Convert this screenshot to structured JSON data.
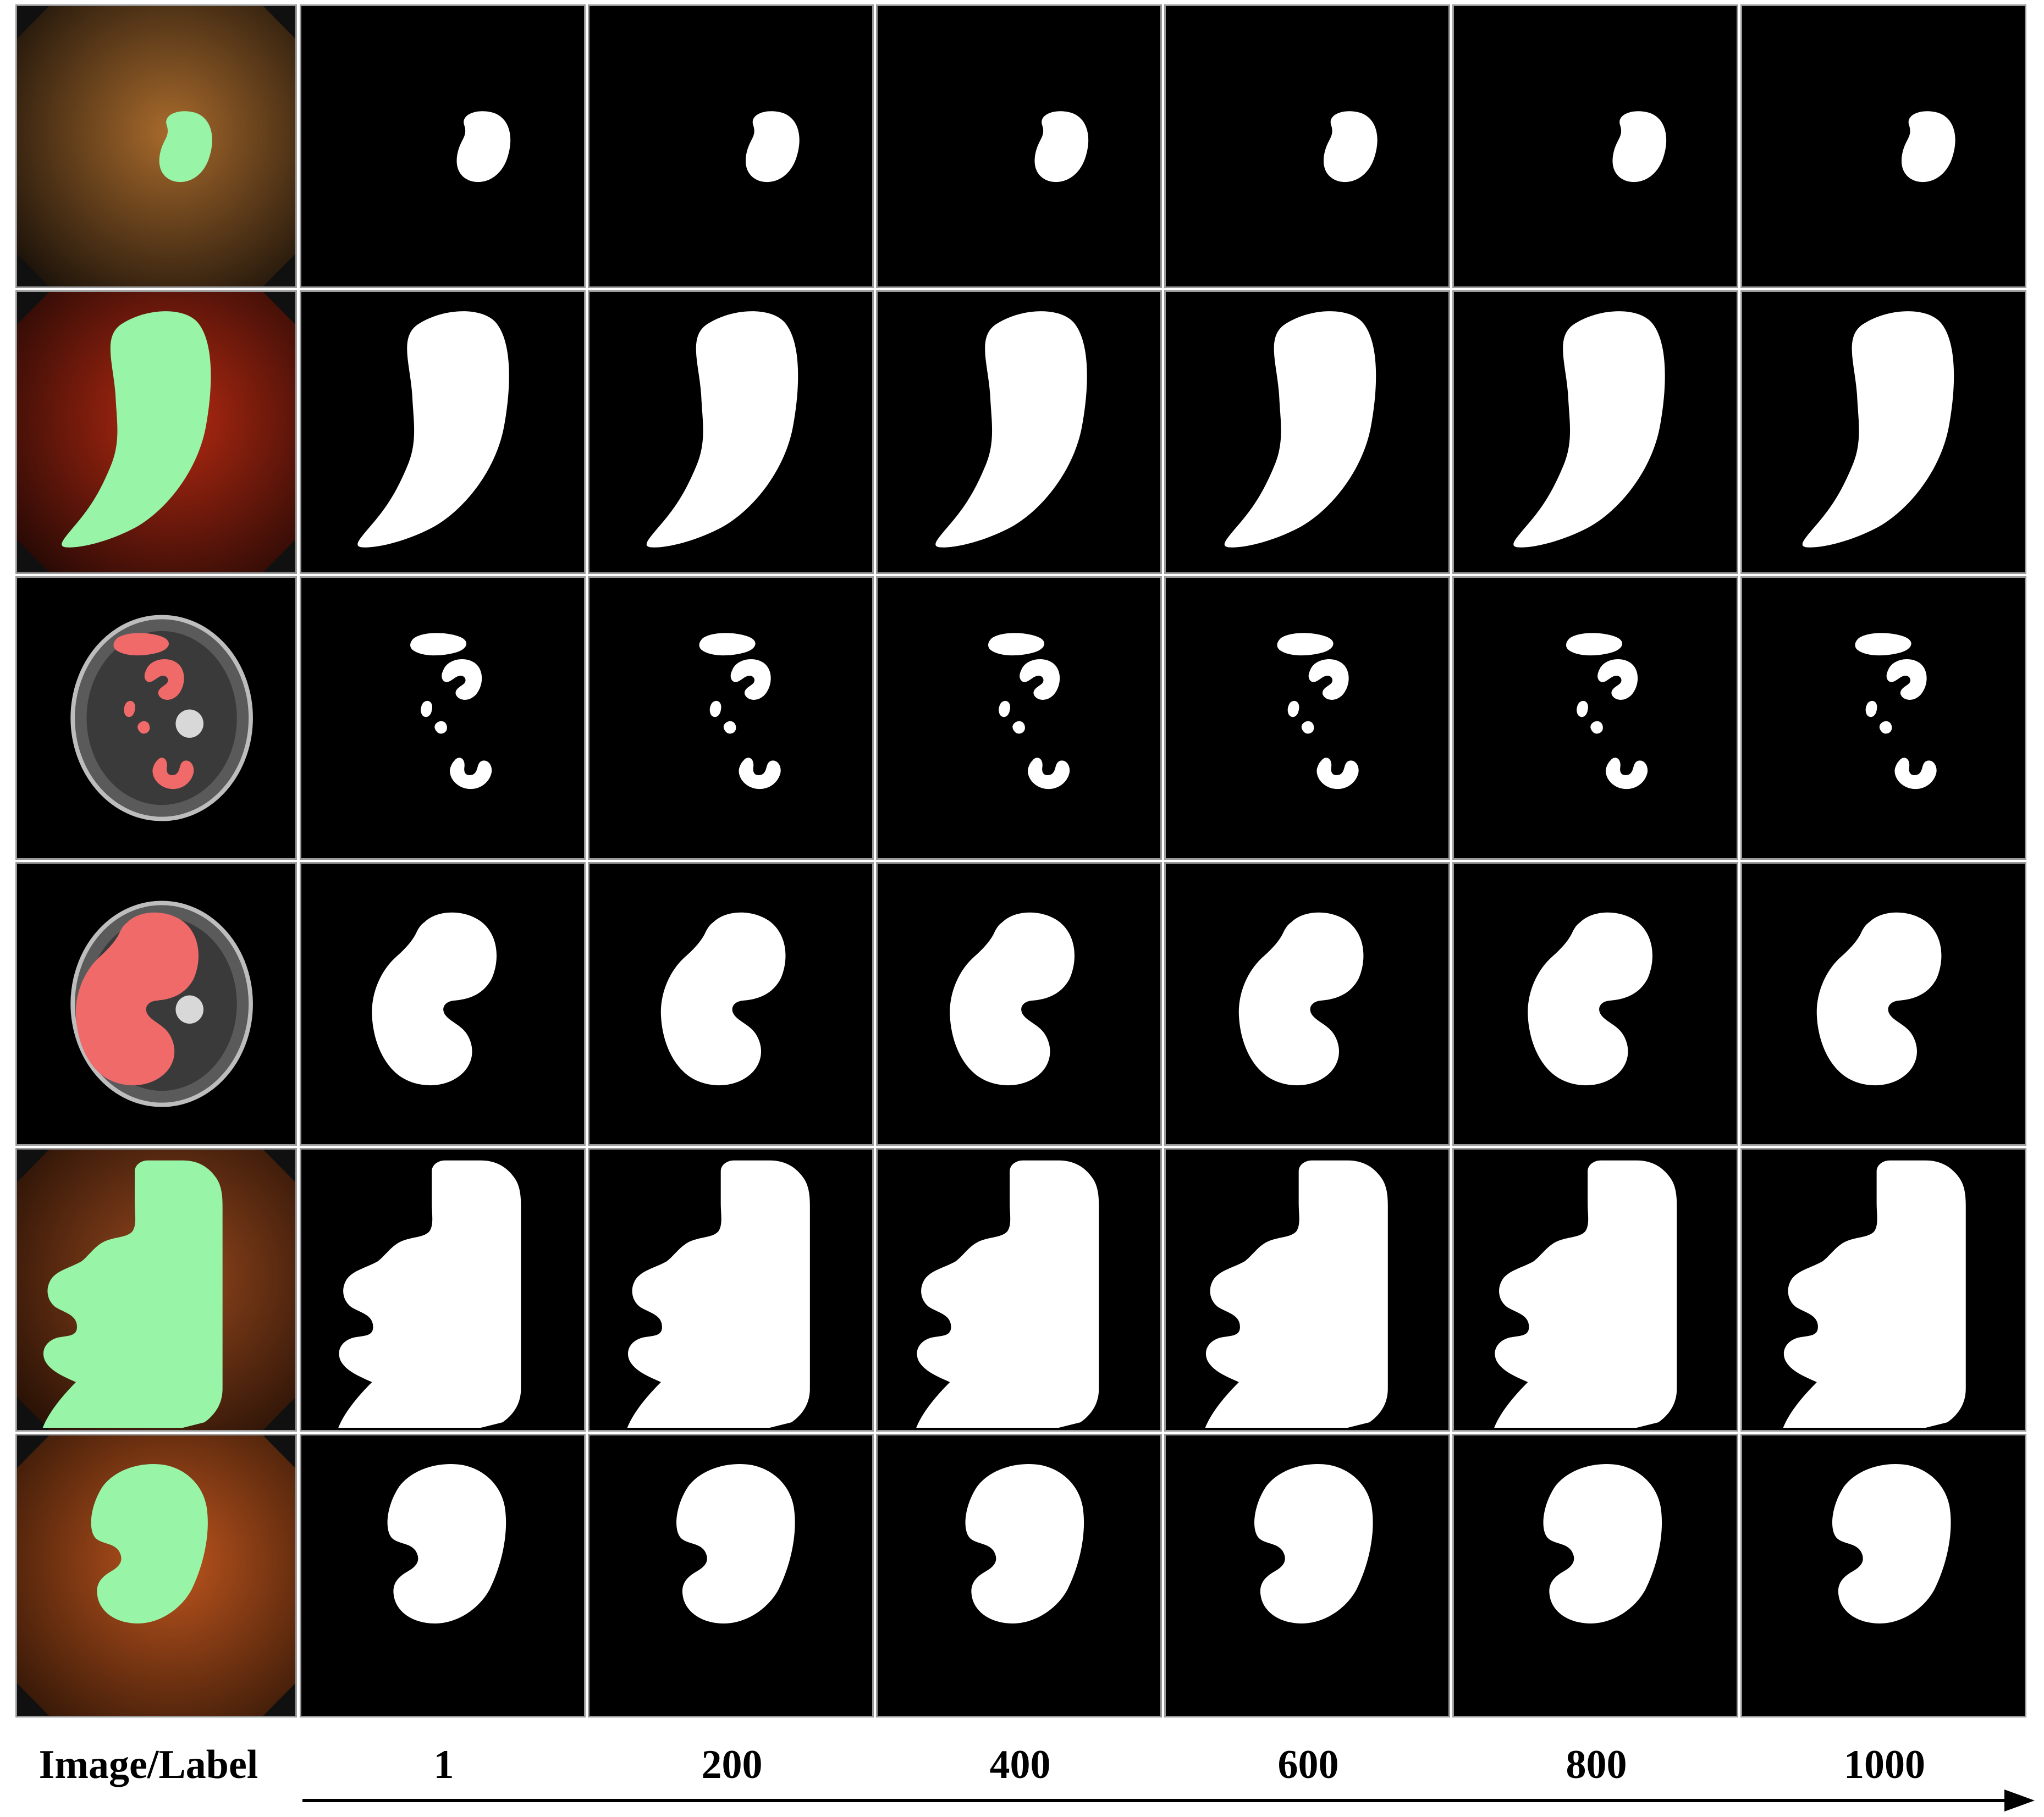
{
  "columns": {
    "image_label": "Image/Label",
    "steps": [
      "1",
      "200",
      "400",
      "600",
      "800",
      "1000"
    ]
  },
  "rows": [
    {
      "modality": "endoscopy",
      "tissue": "#a86a2c",
      "dark": "#1e140a",
      "mask_color": "#98f5a8",
      "shape": "round-polyp"
    },
    {
      "modality": "endoscopy",
      "tissue": "#b82a12",
      "dark": "#2a0a05",
      "mask_color": "#98f5a8",
      "shape": "comma-polyp"
    },
    {
      "modality": "ct",
      "tissue": "#7a7a7a",
      "dark": "#000000",
      "mask_color": "#f06a6a",
      "shape": "kidney-fragments"
    },
    {
      "modality": "ct",
      "tissue": "#7a7a7a",
      "dark": "#000000",
      "mask_color": "#f06a6a",
      "shape": "kidney-large"
    },
    {
      "modality": "endoscopy",
      "tissue": "#9a4a1e",
      "dark": "#2a1206",
      "mask_color": "#98f5a8",
      "shape": "blocky-polyp"
    },
    {
      "modality": "endoscopy",
      "tissue": "#c0561e",
      "dark": "#3a1a08",
      "mask_color": "#98f5a8",
      "shape": "bean-polyp"
    }
  ],
  "colors": {
    "mask_fill": "#ffffff",
    "tile_background": "#000000",
    "grid_line": "#9a9a9a",
    "label_text": "#000000"
  }
}
